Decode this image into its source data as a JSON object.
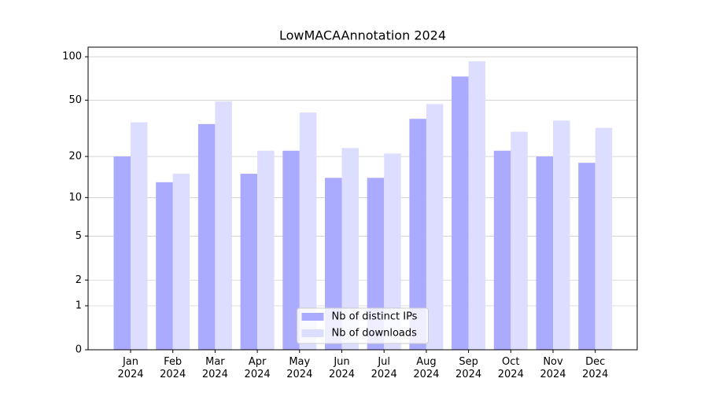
{
  "chart_data": {
    "type": "bar",
    "title": "LowMACAAnnotation 2024",
    "scale": "log1p",
    "categories": [
      "Jan\n2024",
      "Feb\n2024",
      "Mar\n2024",
      "Apr\n2024",
      "May\n2024",
      "Jun\n2024",
      "Jul\n2024",
      "Aug\n2024",
      "Sep\n2024",
      "Oct\n2024",
      "Nov\n2024",
      "Dec\n2024"
    ],
    "series": [
      {
        "name": "Nb of distinct IPs",
        "color": "#aaaaff",
        "values": [
          20,
          13,
          34,
          15,
          22,
          14,
          14,
          37,
          73,
          22,
          20,
          18
        ]
      },
      {
        "name": "Nb of downloads",
        "color": "#ddddff",
        "values": [
          35,
          15,
          49,
          22,
          41,
          23,
          21,
          47,
          93,
          30,
          36,
          32
        ]
      }
    ],
    "ylim": [
      0,
      116.5
    ],
    "yticks": [
      0,
      1,
      2,
      5,
      10,
      20,
      50,
      100
    ],
    "grid": true,
    "legend": "lower center"
  }
}
